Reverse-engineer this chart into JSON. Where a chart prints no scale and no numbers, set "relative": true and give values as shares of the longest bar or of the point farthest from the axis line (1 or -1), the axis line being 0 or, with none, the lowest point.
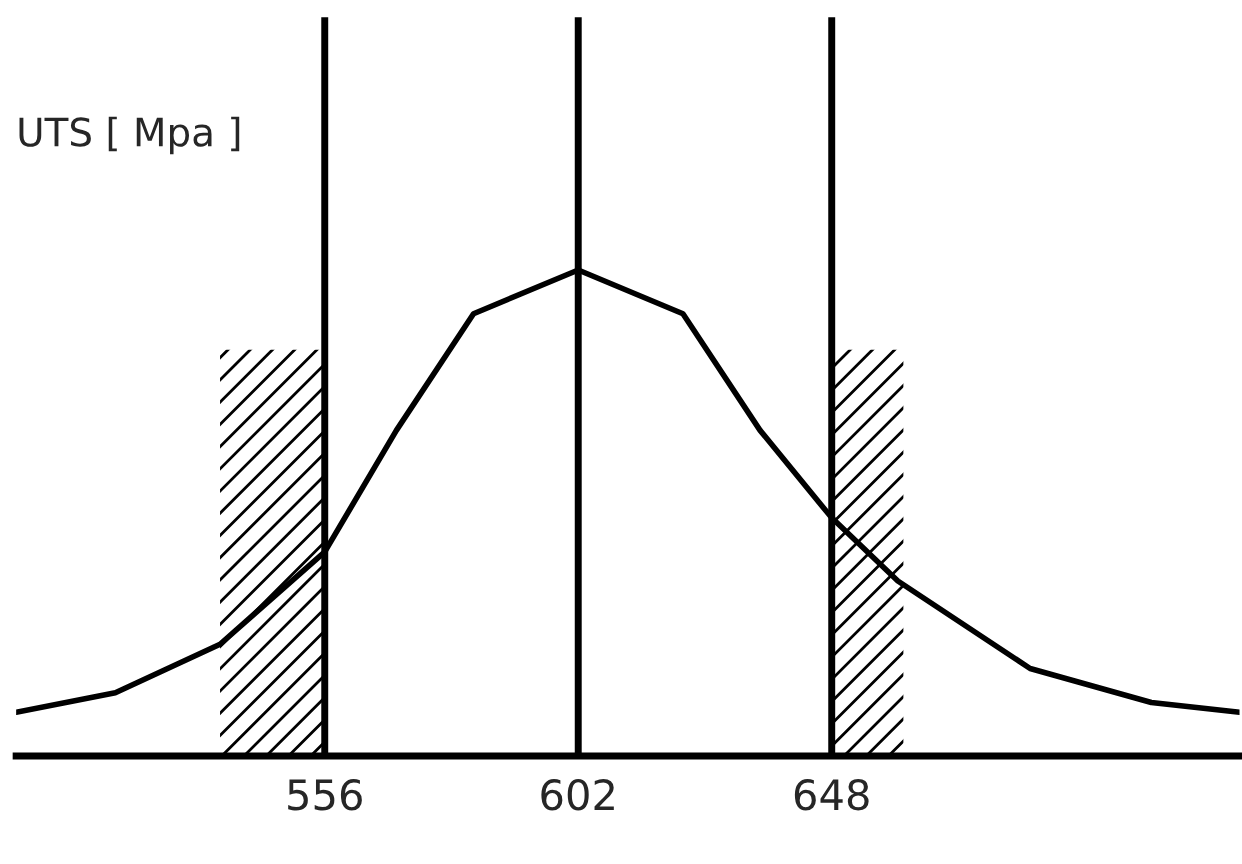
{
  "chart_data": {
    "type": "line",
    "ylabel": "UTS [ Mpa ]",
    "relative": true,
    "x": [
      500,
      518,
      537,
      556,
      569,
      583,
      602,
      621,
      635,
      648,
      660,
      684,
      706,
      722
    ],
    "series": [
      {
        "color": "#000000",
        "values": [
          0.09,
          0.13,
          0.23,
          0.42,
          0.67,
          0.91,
          1,
          0.91,
          0.67,
          0.49,
          0.36,
          0.18,
          0.11,
          0.09
        ]
      }
    ],
    "xlim": [
      500,
      722
    ],
    "xticks": [
      556,
      602,
      648
    ],
    "ref_lines": [
      {
        "axis": "x",
        "value": 556,
        "label": null,
        "color": "#000000"
      },
      {
        "axis": "x",
        "value": 602,
        "label": null,
        "color": "#000000"
      },
      {
        "axis": "x",
        "value": 648,
        "label": null,
        "color": "#000000"
      }
    ],
    "bands": [
      {
        "axis": "x",
        "from": 537,
        "to": 556,
        "label": null,
        "color": "#000000"
      },
      {
        "axis": "x",
        "from": 648,
        "to": 661,
        "label": null,
        "color": "#000000"
      }
    ],
    "grid": false,
    "legend": false,
    "marker": "none",
    "line_style": "solid"
  }
}
